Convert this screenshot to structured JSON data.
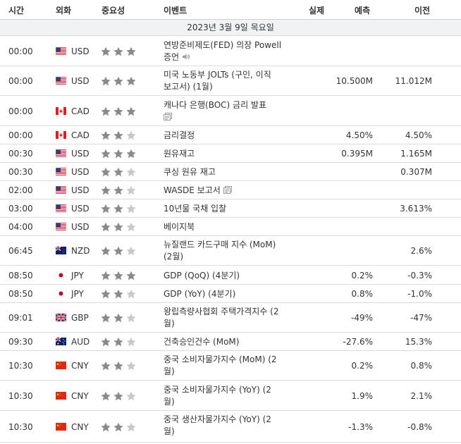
{
  "header": {
    "time": "시간",
    "currency": "외화",
    "importance": "중요성",
    "event": "이벤트",
    "actual": "실제",
    "forecast": "예측",
    "previous": "이전"
  },
  "date_band": "2023년 3월 9일 목요일",
  "rows": [
    {
      "time": "00:00",
      "currency": "USD",
      "flag": "us-flag-icon",
      "stars": 3,
      "event_lines": [
        "연방준비제도(FED) 의장 Powell",
        "증언"
      ],
      "extra_icon": "speaker-icon",
      "actual": "",
      "forecast": "",
      "previous": ""
    },
    {
      "time": "00:00",
      "currency": "USD",
      "flag": "us-flag-icon",
      "stars": 3,
      "event_lines": [
        "미국 노동부 JOLTs (구인, 이직",
        "보고서) (1월)"
      ],
      "extra_icon": "",
      "actual": "",
      "forecast": "10.500M",
      "previous": "11.012M"
    },
    {
      "time": "00:00",
      "currency": "CAD",
      "flag": "ca-flag-icon",
      "stars": 3,
      "event_lines": [
        "캐나다 은행(BOC) 금리 발표",
        ""
      ],
      "extra_icon": "document-icon",
      "actual": "",
      "forecast": "",
      "previous": ""
    },
    {
      "time": "00:00",
      "currency": "CAD",
      "flag": "ca-flag-icon",
      "stars": 2,
      "event_lines": [
        "금리결정"
      ],
      "extra_icon": "",
      "actual": "",
      "forecast": "4.50%",
      "previous": "4.50%"
    },
    {
      "time": "00:30",
      "currency": "USD",
      "flag": "us-flag-icon",
      "stars": 3,
      "event_lines": [
        "원유재고"
      ],
      "extra_icon": "",
      "actual": "",
      "forecast": "0.395M",
      "previous": "1.165M"
    },
    {
      "time": "00:30",
      "currency": "USD",
      "flag": "us-flag-icon",
      "stars": 2,
      "event_lines": [
        "쿠싱 원유 재고"
      ],
      "extra_icon": "",
      "actual": "",
      "forecast": "",
      "previous": "0.307M"
    },
    {
      "time": "02:00",
      "currency": "USD",
      "flag": "us-flag-icon",
      "stars": 2,
      "event_lines": [
        "WASDE 보고서"
      ],
      "extra_icon": "document-icon",
      "actual": "",
      "forecast": "",
      "previous": ""
    },
    {
      "time": "03:00",
      "currency": "USD",
      "flag": "us-flag-icon",
      "stars": 2,
      "event_lines": [
        "10년물 국채 입찰"
      ],
      "extra_icon": "",
      "actual": "",
      "forecast": "",
      "previous": "3.613%"
    },
    {
      "time": "04:00",
      "currency": "USD",
      "flag": "us-flag-icon",
      "stars": 2,
      "event_lines": [
        "베이지북"
      ],
      "extra_icon": "",
      "actual": "",
      "forecast": "",
      "previous": ""
    },
    {
      "time": "06:45",
      "currency": "NZD",
      "flag": "nz-flag-icon",
      "stars": 2,
      "event_lines": [
        "뉴질랜드 카드구매 지수 (MoM)",
        "(2월)"
      ],
      "extra_icon": "",
      "actual": "",
      "forecast": "",
      "previous": "2.6%"
    },
    {
      "time": "08:50",
      "currency": "JPY",
      "flag": "jp-flag-icon",
      "stars": 3,
      "event_lines": [
        "GDP (QoQ) (4분기)"
      ],
      "extra_icon": "",
      "actual": "",
      "forecast": "0.2%",
      "previous": "-0.3%"
    },
    {
      "time": "08:50",
      "currency": "JPY",
      "flag": "jp-flag-icon",
      "stars": 2,
      "event_lines": [
        "GDP (YoY) (4분기)"
      ],
      "extra_icon": "",
      "actual": "",
      "forecast": "0.8%",
      "previous": "-1.0%"
    },
    {
      "time": "09:01",
      "currency": "GBP",
      "flag": "gb-flag-icon",
      "stars": 2,
      "event_lines": [
        "왕립측량사협회 주택가격지수 (2",
        "월)"
      ],
      "extra_icon": "",
      "actual": "",
      "forecast": "-49%",
      "previous": "-47%"
    },
    {
      "time": "09:30",
      "currency": "AUD",
      "flag": "au-flag-icon",
      "stars": 2,
      "event_lines": [
        "건축승인건수 (MoM)"
      ],
      "extra_icon": "",
      "actual": "",
      "forecast": "-27.6%",
      "previous": "15.3%"
    },
    {
      "time": "10:30",
      "currency": "CNY",
      "flag": "cn-flag-icon",
      "stars": 2,
      "event_lines": [
        "중국 소비자물가지수 (MoM) (2",
        "월)"
      ],
      "extra_icon": "",
      "actual": "",
      "forecast": "0.2%",
      "previous": "0.8%"
    },
    {
      "time": "10:30",
      "currency": "CNY",
      "flag": "cn-flag-icon",
      "stars": 2,
      "event_lines": [
        "중국 소비자물가지수 (YoY) (2",
        "월)"
      ],
      "extra_icon": "",
      "actual": "",
      "forecast": "1.9%",
      "previous": "2.1%"
    },
    {
      "time": "10:30",
      "currency": "CNY",
      "flag": "cn-flag-icon",
      "stars": 2,
      "event_lines": [
        "중국 생산자물가지수 (YoY) (2",
        "월)"
      ],
      "extra_icon": "",
      "actual": "",
      "forecast": "-1.3%",
      "previous": "-0.8%"
    }
  ],
  "colors": {
    "star_filled": "#8a8a8a",
    "star_empty": "#c9c9c9",
    "date_band_bg": "#f1f2f4",
    "row_border": "#dcdcdc"
  }
}
